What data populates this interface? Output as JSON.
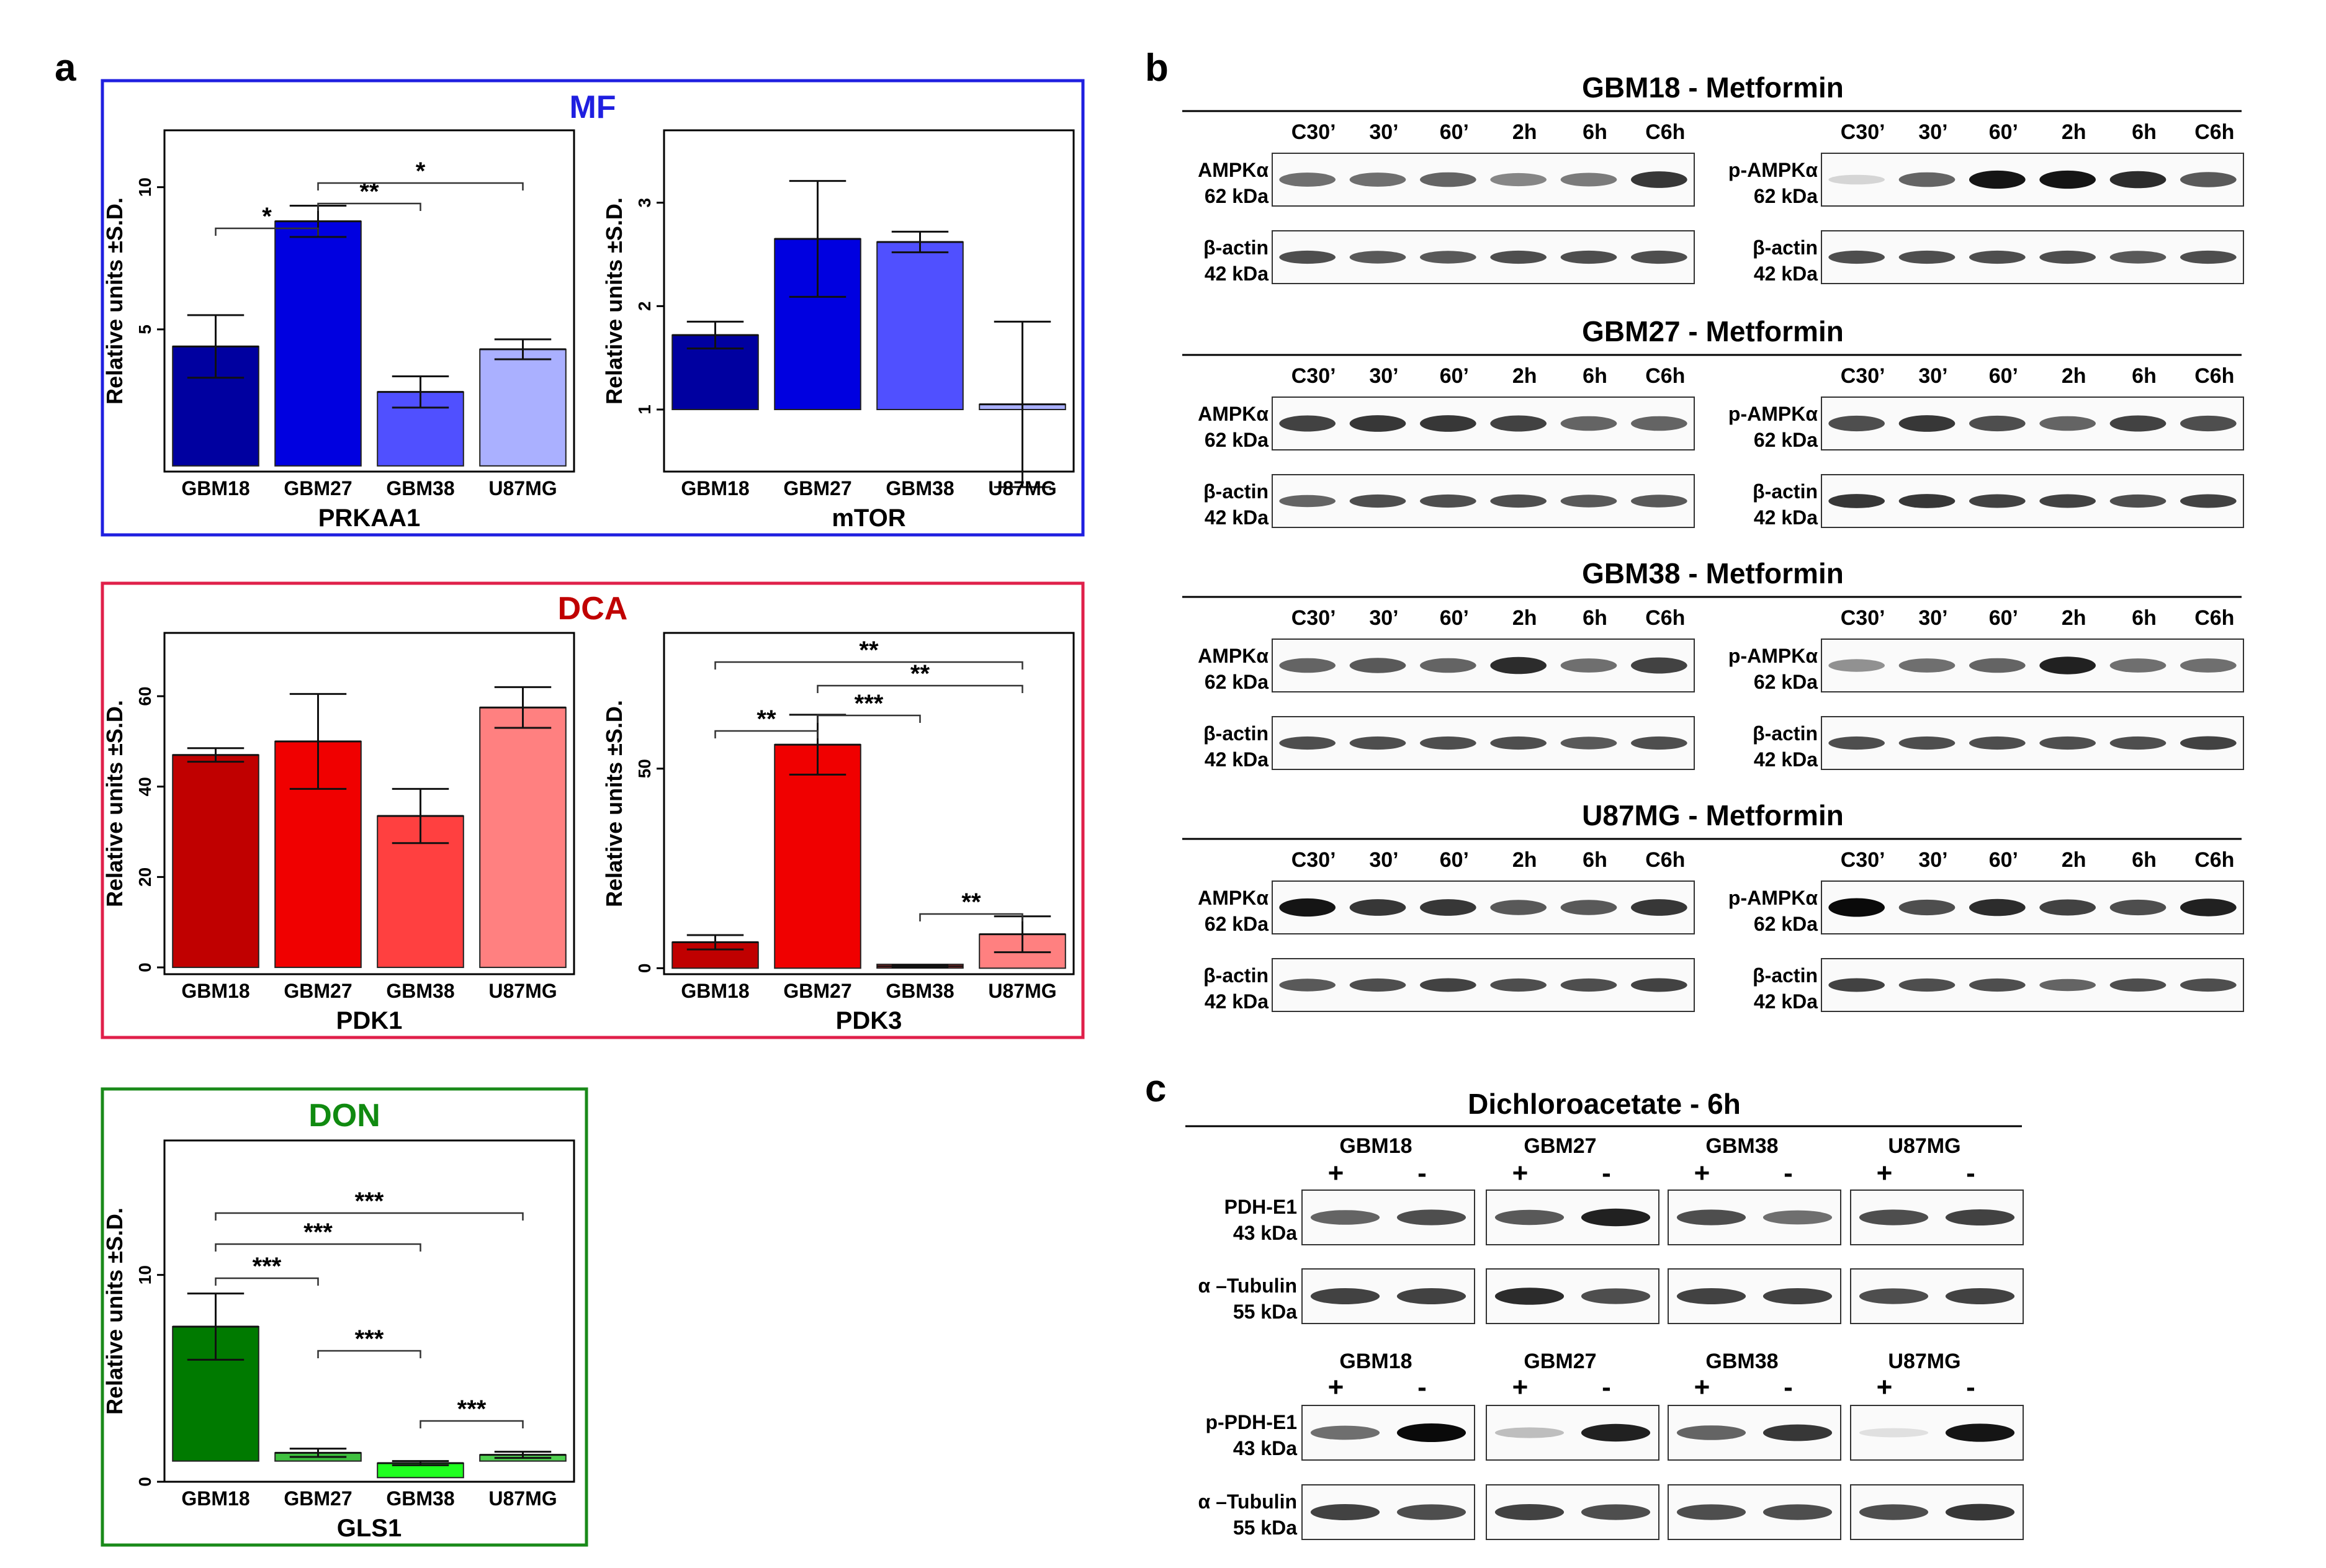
{
  "panels": {
    "a": "a",
    "b": "b",
    "c": "c"
  },
  "colors": {
    "mf_blue": [
      "#0000a0",
      "#0000e0",
      "#5050ff",
      "#aab0ff"
    ],
    "dca_red": [
      "#c00000",
      "#f00000",
      "#ff4040",
      "#ff8080"
    ],
    "don_green": [
      "#007a00",
      "#40c040",
      "#20ff20",
      "#50d050"
    ],
    "mf_frame": "#1f1fe0",
    "dca_frame": "#e0204a",
    "don_frame": "#1a8a1a"
  },
  "groups": {
    "mf": "MF",
    "dca": "DCA",
    "don": "DON"
  },
  "chart_data": [
    {
      "type": "bar",
      "group": "MF",
      "title": "PRKAA1",
      "ylabel": "Relative units ±S.D.",
      "categories": [
        "GBM18",
        "GBM27",
        "GBM38",
        "U87MG"
      ],
      "values": [
        4.4,
        8.8,
        2.8,
        4.3
      ],
      "errors": [
        1.1,
        0.55,
        0.55,
        0.35
      ],
      "ylim": [
        0,
        12
      ],
      "baseline": 0.2,
      "yticks": [
        5,
        10
      ],
      "annotations": [
        {
          "from": 0,
          "to": 1,
          "label": "*"
        },
        {
          "from": 1,
          "to": 2,
          "label": "**"
        },
        {
          "from": 1,
          "to": 3,
          "label": "*"
        }
      ]
    },
    {
      "type": "bar",
      "group": "MF",
      "title": "mTOR",
      "ylabel": "Relative units ±S.D.",
      "categories": [
        "GBM18",
        "GBM27",
        "GBM38",
        "U87MG"
      ],
      "values": [
        1.72,
        2.65,
        2.62,
        1.05
      ],
      "errors": [
        0.13,
        0.56,
        0.1,
        0.8
      ],
      "ylim": [
        0.4,
        3.7
      ],
      "baseline": 1.0,
      "yticks": [
        1,
        2,
        3
      ],
      "annotations": []
    },
    {
      "type": "bar",
      "group": "DCA",
      "title": "PDK1",
      "ylabel": "Relative units ±S.D.",
      "categories": [
        "GBM18",
        "GBM27",
        "GBM38",
        "U87MG"
      ],
      "values": [
        47,
        50,
        33.5,
        57.5
      ],
      "errors": [
        1.5,
        10.5,
        6,
        4.5
      ],
      "ylim": [
        -1.5,
        74
      ],
      "baseline": 0,
      "yticks": [
        0,
        20,
        40,
        60
      ],
      "annotations": []
    },
    {
      "type": "bar",
      "group": "DCA",
      "title": "PDK3",
      "ylabel": "Relative units ±S.D.",
      "categories": [
        "GBM18",
        "GBM27",
        "GBM38",
        "U87MG"
      ],
      "values": [
        6.5,
        56,
        0.5,
        8.5
      ],
      "errors": [
        1.8,
        7.5,
        0.3,
        4.5
      ],
      "ylim": [
        -1.5,
        84
      ],
      "baseline": 0,
      "yticks": [
        0,
        50
      ],
      "annotations": [
        {
          "from": 0,
          "to": 1,
          "label": "**"
        },
        {
          "from": 1,
          "to": 2,
          "label": "***"
        },
        {
          "from": 1,
          "to": 3,
          "label": "**"
        },
        {
          "from": 0,
          "to": 3,
          "label": "**"
        },
        {
          "from": 2,
          "to": 3,
          "label": "**"
        }
      ]
    },
    {
      "type": "bar",
      "group": "DON",
      "title": "GLS1",
      "ylabel": "Relative units ±S.D.",
      "categories": [
        "GBM18",
        "GBM27",
        "GBM38",
        "U87MG"
      ],
      "values": [
        7.5,
        1.4,
        0.9,
        1.3
      ],
      "errors": [
        1.6,
        0.2,
        0.1,
        0.15
      ],
      "ylim": [
        0,
        16.5
      ],
      "baseline": 1,
      "baselines": [
        1,
        1,
        0.2,
        1
      ],
      "yticks": [
        0,
        10
      ],
      "annotations": [
        {
          "from": 0,
          "to": 1,
          "label": "***"
        },
        {
          "from": 0,
          "to": 2,
          "label": "***"
        },
        {
          "from": 0,
          "to": 3,
          "label": "***"
        },
        {
          "from": 1,
          "to": 2,
          "label": "***"
        },
        {
          "from": 2,
          "to": 3,
          "label": "***"
        }
      ]
    }
  ],
  "blots_b": {
    "timepoints": [
      "C30’",
      "30’",
      "60’",
      "2h",
      "6h",
      "C6h"
    ],
    "lanes": [
      {
        "title": "GBM18 - Metformin",
        "bands": {
          "ampk": [
            0.55,
            0.55,
            0.6,
            0.45,
            0.5,
            0.8
          ],
          "pampk": [
            0.1,
            0.6,
            0.95,
            0.95,
            0.85,
            0.65
          ],
          "actin_l": [
            0.7,
            0.65,
            0.65,
            0.7,
            0.7,
            0.7
          ],
          "actin_r": [
            0.7,
            0.7,
            0.7,
            0.7,
            0.65,
            0.7
          ]
        }
      },
      {
        "title": "GBM27 - Metformin",
        "bands": {
          "ampk": [
            0.75,
            0.8,
            0.8,
            0.75,
            0.6,
            0.6
          ],
          "pampk": [
            0.7,
            0.8,
            0.7,
            0.6,
            0.75,
            0.7
          ],
          "actin_l": [
            0.6,
            0.7,
            0.7,
            0.7,
            0.65,
            0.65
          ],
          "actin_r": [
            0.8,
            0.8,
            0.75,
            0.75,
            0.7,
            0.75
          ]
        }
      },
      {
        "title": "GBM38 - Metformin",
        "bands": {
          "ampk": [
            0.6,
            0.65,
            0.6,
            0.85,
            0.55,
            0.75
          ],
          "pampk": [
            0.4,
            0.55,
            0.6,
            0.9,
            0.55,
            0.55
          ],
          "actin_l": [
            0.7,
            0.7,
            0.7,
            0.7,
            0.65,
            0.7
          ],
          "actin_r": [
            0.7,
            0.7,
            0.7,
            0.7,
            0.7,
            0.75
          ]
        }
      },
      {
        "title": "U87MG - Metformin",
        "bands": {
          "ampk": [
            0.95,
            0.8,
            0.8,
            0.65,
            0.65,
            0.8
          ],
          "pampk": [
            1.0,
            0.7,
            0.85,
            0.75,
            0.7,
            0.9
          ],
          "actin_l": [
            0.65,
            0.7,
            0.75,
            0.7,
            0.7,
            0.75
          ],
          "actin_r": [
            0.75,
            0.7,
            0.7,
            0.6,
            0.7,
            0.7
          ]
        }
      }
    ],
    "labels": {
      "ampk": "AMPKα",
      "pampk": "p-AMPKα",
      "actin": "β-actin",
      "kda62": "62 kDa",
      "kda42": "42 kDa"
    }
  },
  "blots_c": {
    "title": "Dichloroacetate - 6h",
    "cells": [
      "GBM18",
      "GBM27",
      "GBM38",
      "U87MG"
    ],
    "signs": [
      "+",
      "-"
    ],
    "labels": {
      "pdh": "PDH-E1",
      "ppdh": "p-PDH-E1",
      "tub": "α –Tubulin",
      "kda43": "43 kDa",
      "kda55": "55 kDa"
    },
    "bands": {
      "pdh": [
        [
          0.6,
          0.7
        ],
        [
          0.65,
          0.9
        ],
        [
          0.7,
          0.55
        ],
        [
          0.7,
          0.75
        ]
      ],
      "tub1": [
        [
          0.75,
          0.75
        ],
        [
          0.85,
          0.7
        ],
        [
          0.75,
          0.75
        ],
        [
          0.7,
          0.75
        ]
      ],
      "ppdh": [
        [
          0.55,
          1.0
        ],
        [
          0.2,
          0.9
        ],
        [
          0.6,
          0.8
        ],
        [
          0.05,
          0.95
        ]
      ],
      "tub2": [
        [
          0.75,
          0.7
        ],
        [
          0.75,
          0.7
        ],
        [
          0.7,
          0.7
        ],
        [
          0.7,
          0.8
        ]
      ]
    }
  }
}
